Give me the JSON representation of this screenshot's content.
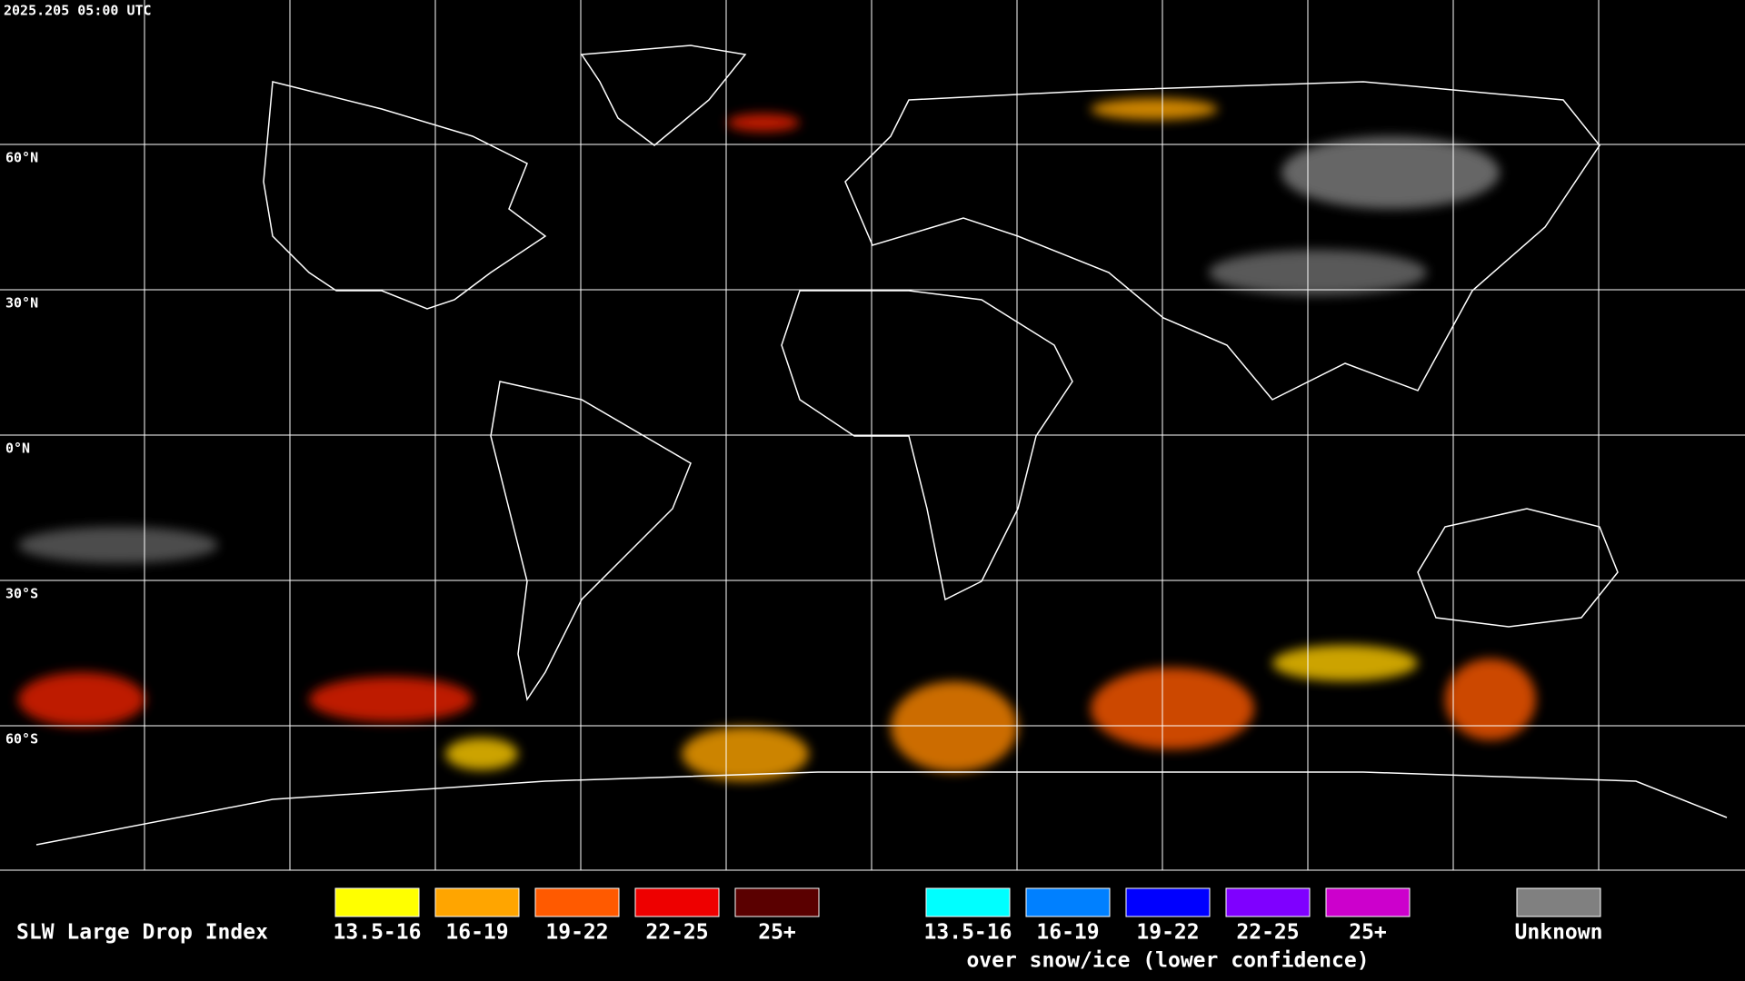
{
  "header": {
    "timestamp": "2025.205 05:00 UTC"
  },
  "grid": {
    "lat_labels": [
      "60°N",
      "30°N",
      "0°N",
      "30°S",
      "60°S"
    ]
  },
  "legend": {
    "title": "SLW Large Drop Index",
    "groups": [
      {
        "items": [
          {
            "label": "13.5-16",
            "color": "#ffff00"
          },
          {
            "label": "16-19",
            "color": "#ffa500"
          },
          {
            "label": "19-22",
            "color": "#ff5a00"
          },
          {
            "label": "22-25",
            "color": "#ee0000"
          },
          {
            "label": "25+",
            "color": "#5a0000"
          }
        ]
      },
      {
        "items": [
          {
            "label": "13.5-16",
            "color": "#00ffff"
          },
          {
            "label": "16-19",
            "color": "#0080ff"
          },
          {
            "label": "19-22",
            "color": "#0000ff"
          },
          {
            "label": "22-25",
            "color": "#7f00ff"
          },
          {
            "label": "25+",
            "color": "#cc00cc"
          }
        ],
        "caption": "over snow/ice (lower confidence)"
      }
    ],
    "unknown": {
      "label": "Unknown",
      "color": "#808080"
    }
  }
}
